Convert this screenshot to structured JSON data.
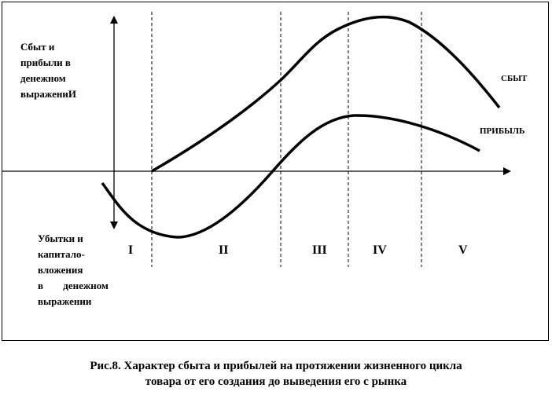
{
  "diagram": {
    "y_label_top": [
      "Сбыт и",
      "прибыли в",
      "денежном",
      "выражениИ"
    ],
    "y_label_bottom": [
      "Убытки и",
      "капитало-",
      "вложения",
      "в денежном",
      "выражении"
    ],
    "series": [
      {
        "name": "СБЫТ"
      },
      {
        "name": "ПРИБЫЛЬ"
      }
    ],
    "stages": [
      "I",
      "II",
      "III",
      "IV",
      "V"
    ]
  },
  "caption": {
    "line1": "Рис.8. Характер сбыта и прибылей на протяжении жизненного цикла",
    "line2": "товара от его создания до выведения его с рынка"
  }
}
